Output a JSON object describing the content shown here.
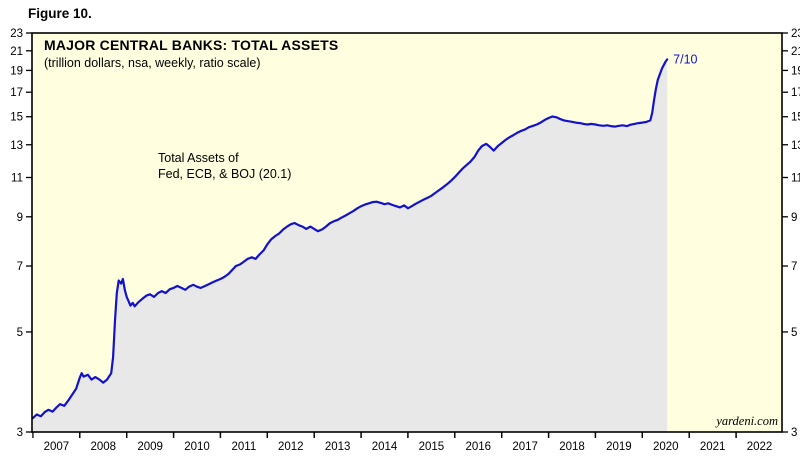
{
  "figure_label": "Figure 10.",
  "title": "MAJOR CENTRAL BANKS: TOTAL ASSETS",
  "subtitle": "(trillion dollars, nsa, weekly, ratio scale)",
  "annotation_lines": [
    "Total Assets of",
    "Fed, ECB, & BOJ (20.1)"
  ],
  "end_label": "7/10",
  "watermark": "yardeni.com",
  "colors": {
    "line": "#1212cc",
    "end_label": "#1212cc",
    "plot_bg": "#ffffe0",
    "area_fill": "#e8e8e8",
    "frame": "#000000",
    "tick_label": "#000000"
  },
  "chart_data": {
    "type": "area",
    "title": "MAJOR CENTRAL BANKS: TOTAL ASSETS",
    "subtitle": "(trillion dollars, nsa, weekly, ratio scale)",
    "y_scale": "log",
    "grid": false,
    "legend": "none",
    "x_range": [
      2006.98,
      2022.98
    ],
    "y_range": [
      3,
      23
    ],
    "y_ticks": [
      3,
      5,
      7,
      9,
      11,
      13,
      15,
      17,
      19,
      21,
      23
    ],
    "x_ticks": [
      2007,
      2008,
      2009,
      2010,
      2011,
      2012,
      2013,
      2014,
      2015,
      2016,
      2017,
      2018,
      2019,
      2020,
      2021,
      2022
    ],
    "series": [
      {
        "name": "Total Assets of Fed, ECB, & BOJ",
        "latest_value": 20.1,
        "latest_date_label": "7/10",
        "points": [
          [
            2007.0,
            3.22
          ],
          [
            2007.08,
            3.28
          ],
          [
            2007.17,
            3.25
          ],
          [
            2007.25,
            3.32
          ],
          [
            2007.33,
            3.36
          ],
          [
            2007.42,
            3.33
          ],
          [
            2007.5,
            3.4
          ],
          [
            2007.58,
            3.46
          ],
          [
            2007.67,
            3.43
          ],
          [
            2007.75,
            3.52
          ],
          [
            2007.83,
            3.62
          ],
          [
            2007.92,
            3.74
          ],
          [
            2008.0,
            3.96
          ],
          [
            2008.04,
            4.05
          ],
          [
            2008.08,
            3.98
          ],
          [
            2008.17,
            4.02
          ],
          [
            2008.25,
            3.92
          ],
          [
            2008.33,
            3.97
          ],
          [
            2008.42,
            3.92
          ],
          [
            2008.5,
            3.86
          ],
          [
            2008.58,
            3.92
          ],
          [
            2008.67,
            4.05
          ],
          [
            2008.71,
            4.4
          ],
          [
            2008.75,
            5.3
          ],
          [
            2008.79,
            6.1
          ],
          [
            2008.83,
            6.5
          ],
          [
            2008.88,
            6.4
          ],
          [
            2008.92,
            6.55
          ],
          [
            2008.96,
            6.2
          ],
          [
            2009.0,
            5.98
          ],
          [
            2009.04,
            5.85
          ],
          [
            2009.08,
            5.72
          ],
          [
            2009.13,
            5.8
          ],
          [
            2009.17,
            5.7
          ],
          [
            2009.25,
            5.82
          ],
          [
            2009.33,
            5.92
          ],
          [
            2009.42,
            6.02
          ],
          [
            2009.5,
            6.06
          ],
          [
            2009.58,
            5.98
          ],
          [
            2009.67,
            6.1
          ],
          [
            2009.75,
            6.16
          ],
          [
            2009.83,
            6.1
          ],
          [
            2009.92,
            6.22
          ],
          [
            2010.0,
            6.26
          ],
          [
            2010.08,
            6.32
          ],
          [
            2010.17,
            6.26
          ],
          [
            2010.25,
            6.2
          ],
          [
            2010.33,
            6.3
          ],
          [
            2010.42,
            6.36
          ],
          [
            2010.5,
            6.3
          ],
          [
            2010.58,
            6.26
          ],
          [
            2010.67,
            6.32
          ],
          [
            2010.75,
            6.38
          ],
          [
            2010.83,
            6.44
          ],
          [
            2010.92,
            6.5
          ],
          [
            2011.0,
            6.55
          ],
          [
            2011.08,
            6.62
          ],
          [
            2011.17,
            6.72
          ],
          [
            2011.25,
            6.86
          ],
          [
            2011.33,
            7.0
          ],
          [
            2011.42,
            7.06
          ],
          [
            2011.5,
            7.16
          ],
          [
            2011.58,
            7.26
          ],
          [
            2011.67,
            7.32
          ],
          [
            2011.75,
            7.26
          ],
          [
            2011.83,
            7.42
          ],
          [
            2011.92,
            7.58
          ],
          [
            2012.0,
            7.82
          ],
          [
            2012.08,
            8.02
          ],
          [
            2012.17,
            8.16
          ],
          [
            2012.25,
            8.26
          ],
          [
            2012.33,
            8.42
          ],
          [
            2012.42,
            8.56
          ],
          [
            2012.5,
            8.66
          ],
          [
            2012.58,
            8.72
          ],
          [
            2012.67,
            8.62
          ],
          [
            2012.75,
            8.56
          ],
          [
            2012.83,
            8.46
          ],
          [
            2012.92,
            8.56
          ],
          [
            2013.0,
            8.46
          ],
          [
            2013.08,
            8.36
          ],
          [
            2013.17,
            8.44
          ],
          [
            2013.25,
            8.56
          ],
          [
            2013.33,
            8.7
          ],
          [
            2013.42,
            8.8
          ],
          [
            2013.5,
            8.86
          ],
          [
            2013.58,
            8.96
          ],
          [
            2013.67,
            9.06
          ],
          [
            2013.75,
            9.16
          ],
          [
            2013.83,
            9.26
          ],
          [
            2013.92,
            9.4
          ],
          [
            2014.0,
            9.5
          ],
          [
            2014.08,
            9.58
          ],
          [
            2014.17,
            9.64
          ],
          [
            2014.25,
            9.7
          ],
          [
            2014.33,
            9.72
          ],
          [
            2014.42,
            9.66
          ],
          [
            2014.5,
            9.6
          ],
          [
            2014.58,
            9.64
          ],
          [
            2014.67,
            9.56
          ],
          [
            2014.75,
            9.5
          ],
          [
            2014.83,
            9.44
          ],
          [
            2014.92,
            9.54
          ],
          [
            2015.0,
            9.4
          ],
          [
            2015.08,
            9.5
          ],
          [
            2015.17,
            9.62
          ],
          [
            2015.25,
            9.72
          ],
          [
            2015.33,
            9.82
          ],
          [
            2015.42,
            9.92
          ],
          [
            2015.5,
            10.02
          ],
          [
            2015.58,
            10.16
          ],
          [
            2015.67,
            10.32
          ],
          [
            2015.75,
            10.46
          ],
          [
            2015.83,
            10.62
          ],
          [
            2015.92,
            10.82
          ],
          [
            2016.0,
            11.02
          ],
          [
            2016.08,
            11.26
          ],
          [
            2016.17,
            11.52
          ],
          [
            2016.25,
            11.72
          ],
          [
            2016.33,
            11.92
          ],
          [
            2016.42,
            12.22
          ],
          [
            2016.5,
            12.62
          ],
          [
            2016.58,
            12.92
          ],
          [
            2016.67,
            13.06
          ],
          [
            2016.75,
            12.86
          ],
          [
            2016.83,
            12.62
          ],
          [
            2016.92,
            12.92
          ],
          [
            2017.0,
            13.12
          ],
          [
            2017.08,
            13.32
          ],
          [
            2017.17,
            13.52
          ],
          [
            2017.25,
            13.66
          ],
          [
            2017.33,
            13.82
          ],
          [
            2017.42,
            13.96
          ],
          [
            2017.5,
            14.06
          ],
          [
            2017.58,
            14.22
          ],
          [
            2017.67,
            14.32
          ],
          [
            2017.75,
            14.42
          ],
          [
            2017.83,
            14.56
          ],
          [
            2017.92,
            14.76
          ],
          [
            2018.0,
            14.9
          ],
          [
            2018.08,
            15.02
          ],
          [
            2018.17,
            14.96
          ],
          [
            2018.25,
            14.82
          ],
          [
            2018.33,
            14.72
          ],
          [
            2018.42,
            14.66
          ],
          [
            2018.5,
            14.62
          ],
          [
            2018.58,
            14.56
          ],
          [
            2018.67,
            14.52
          ],
          [
            2018.75,
            14.46
          ],
          [
            2018.83,
            14.42
          ],
          [
            2018.92,
            14.46
          ],
          [
            2019.0,
            14.42
          ],
          [
            2019.08,
            14.36
          ],
          [
            2019.17,
            14.32
          ],
          [
            2019.25,
            14.36
          ],
          [
            2019.33,
            14.3
          ],
          [
            2019.42,
            14.26
          ],
          [
            2019.5,
            14.32
          ],
          [
            2019.58,
            14.36
          ],
          [
            2019.67,
            14.3
          ],
          [
            2019.75,
            14.4
          ],
          [
            2019.83,
            14.46
          ],
          [
            2019.92,
            14.52
          ],
          [
            2020.0,
            14.56
          ],
          [
            2020.08,
            14.6
          ],
          [
            2020.17,
            14.72
          ],
          [
            2020.21,
            15.3
          ],
          [
            2020.25,
            16.3
          ],
          [
            2020.29,
            17.3
          ],
          [
            2020.33,
            18.1
          ],
          [
            2020.38,
            18.7
          ],
          [
            2020.42,
            19.2
          ],
          [
            2020.46,
            19.55
          ],
          [
            2020.5,
            19.9
          ],
          [
            2020.53,
            20.1
          ]
        ]
      }
    ]
  }
}
